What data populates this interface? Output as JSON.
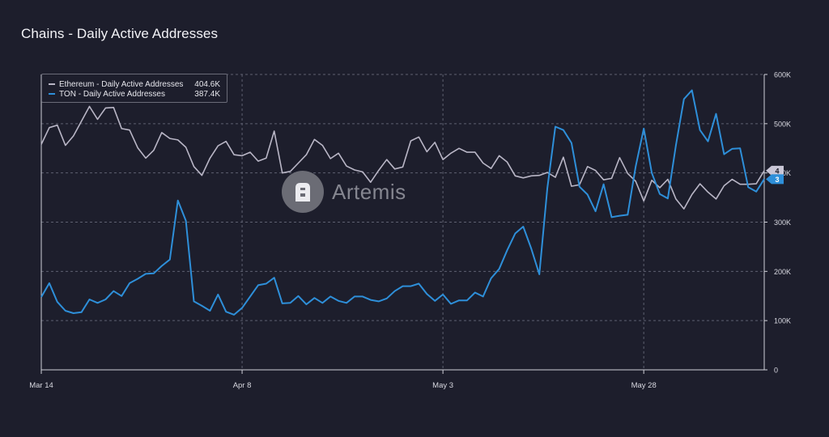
{
  "title": "Chains - Daily Active Addresses",
  "legend": [
    {
      "name": "Ethereum - Daily Active Addresses",
      "value": "404.6K",
      "color": "#b9b6c6"
    },
    {
      "name": "TON - Daily Active Addresses",
      "value": "387.4K",
      "color": "#2e8fd9"
    }
  ],
  "watermark": {
    "brand": "Artemis",
    "icon": "artemis-logo-icon"
  },
  "colors": {
    "background": "#1d1e2c",
    "grid": "#5e6070",
    "eth": "#b9b6c6",
    "ton": "#2e8fd9"
  },
  "chart_data": {
    "type": "line",
    "title": "Chains - Daily Active Addresses",
    "x_start": "Mar 14",
    "x_tick_labels": [
      "Mar 14",
      "Apr 8",
      "May 3",
      "May 28"
    ],
    "x_tick_indices": [
      0,
      25,
      50,
      75
    ],
    "y_tick_labels": [
      "0",
      "100K",
      "200K",
      "300K",
      "400K",
      "500K",
      "600K"
    ],
    "ylim": [
      0,
      600000
    ],
    "y_ticks": [
      0,
      100000,
      200000,
      300000,
      400000,
      500000,
      600000
    ],
    "grid": true,
    "legend_position": "top-left",
    "end_markers": [
      "4",
      "3"
    ],
    "series": [
      {
        "name": "Ethereum - Daily Active Addresses",
        "color": "#b9b6c6",
        "values": [
          458000,
          492000,
          497000,
          456000,
          475000,
          505000,
          535000,
          509000,
          532000,
          533000,
          490000,
          487000,
          451000,
          430000,
          446000,
          482000,
          470000,
          467000,
          452000,
          413000,
          395000,
          430000,
          455000,
          464000,
          437000,
          435000,
          442000,
          424000,
          430000,
          485000,
          400000,
          403000,
          420000,
          437000,
          468000,
          456000,
          429000,
          440000,
          414000,
          406000,
          402000,
          381000,
          405000,
          427000,
          408000,
          412000,
          465000,
          473000,
          443000,
          462000,
          427000,
          440000,
          450000,
          442000,
          442000,
          420000,
          409000,
          435000,
          422000,
          394000,
          390000,
          394000,
          395000,
          401000,
          391000,
          432000,
          373000,
          376000,
          413000,
          405000,
          386000,
          389000,
          431000,
          399000,
          383000,
          343000,
          385000,
          370000,
          387000,
          347000,
          327000,
          356000,
          378000,
          361000,
          347000,
          374000,
          387000,
          377000,
          377000,
          378000,
          404600
        ]
      },
      {
        "name": "TON - Daily Active Addresses",
        "color": "#2e8fd9",
        "values": [
          148000,
          176000,
          138000,
          120000,
          115000,
          117000,
          143000,
          136000,
          143000,
          160000,
          150000,
          176000,
          185000,
          195000,
          196000,
          211000,
          224000,
          344000,
          303000,
          139000,
          130000,
          120000,
          153000,
          118000,
          112000,
          126000,
          149000,
          172000,
          175000,
          187000,
          135000,
          136000,
          150000,
          133000,
          146000,
          136000,
          149000,
          140000,
          136000,
          149000,
          149000,
          142000,
          139000,
          145000,
          160000,
          170000,
          170000,
          175000,
          154000,
          140000,
          153000,
          134000,
          141000,
          141000,
          157000,
          149000,
          186000,
          205000,
          243000,
          277000,
          291000,
          246000,
          194000,
          369000,
          494000,
          487000,
          461000,
          372000,
          356000,
          322000,
          377000,
          310000,
          313000,
          315000,
          413000,
          490000,
          400000,
          357000,
          348000,
          456000,
          550000,
          568000,
          487000,
          464000,
          520000,
          438000,
          449000,
          450000,
          371000,
          362000,
          387400
        ]
      }
    ]
  }
}
